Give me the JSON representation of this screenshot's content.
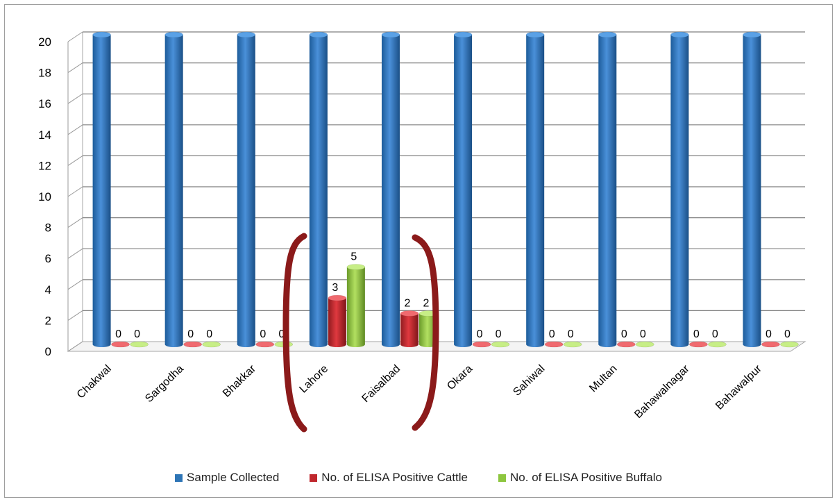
{
  "chart_data": {
    "type": "bar",
    "categories": [
      "Chakwal",
      "Sargodha",
      "Bhakkar",
      "Lahore",
      "Faisalbad",
      "Okara",
      "Sahiwal",
      "Multan",
      "Bahawalnagar",
      "Bahawalpur"
    ],
    "series": [
      {
        "name": "Sample Collected",
        "values": [
          20,
          20,
          20,
          20,
          20,
          20,
          20,
          20,
          20,
          20
        ],
        "color": "#2E75B6",
        "labels": false
      },
      {
        "name": "No. of ELISA Positive Cattle",
        "values": [
          0,
          0,
          0,
          3,
          2,
          0,
          0,
          0,
          0,
          0
        ],
        "color": "#C0272D",
        "labels": true
      },
      {
        "name": "No. of ELISA Positive Buffalo",
        "values": [
          0,
          0,
          0,
          5,
          2,
          0,
          0,
          0,
          0,
          0
        ],
        "color": "#8DC63F",
        "labels": true
      }
    ],
    "yticks": [
      0,
      2,
      4,
      6,
      8,
      10,
      12,
      14,
      16,
      18,
      20
    ],
    "ylim": [
      0,
      20
    ],
    "xlabel": "",
    "ylabel": "",
    "title": "",
    "grid": true,
    "legend": "bottom",
    "annotation_color": "#8B1A1A"
  }
}
